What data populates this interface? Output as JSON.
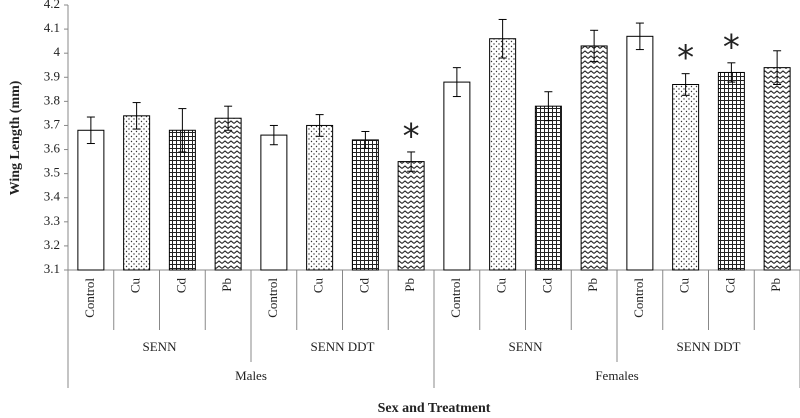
{
  "chart_data": {
    "type": "bar",
    "y_label": "Wing Length (mm)",
    "x_label": "Sex and Treatment",
    "categories": [
      "Control",
      "Cu",
      "Cd",
      "Pb",
      "Control",
      "Cu",
      "Cd",
      "Pb",
      "Control",
      "Cu",
      "Cd",
      "Pb",
      "Control",
      "Cu",
      "Cd",
      "Pb"
    ],
    "subgroups": [
      "SENN",
      "SENN DDT",
      "SENN",
      "SENN DDT"
    ],
    "groups": [
      "Males",
      "Females"
    ],
    "values": [
      3.68,
      3.74,
      3.68,
      3.73,
      3.66,
      3.7,
      3.64,
      3.55,
      3.88,
      4.06,
      3.78,
      4.03,
      4.07,
      3.87,
      3.92,
      3.94
    ],
    "errors": [
      0.055,
      0.055,
      0.09,
      0.05,
      0.04,
      0.045,
      0.035,
      0.04,
      0.06,
      0.08,
      0.06,
      0.065,
      0.055,
      0.045,
      0.04,
      0.07
    ],
    "significant": [
      false,
      false,
      false,
      false,
      false,
      false,
      false,
      true,
      false,
      false,
      false,
      false,
      false,
      true,
      true,
      false
    ],
    "significance_marker": "*",
    "color": "#000000",
    "ylim": [
      3.1,
      4.2
    ],
    "yticks": [
      3.1,
      3.2,
      3.3,
      3.4,
      3.5,
      3.6,
      3.7,
      3.8,
      3.9,
      {
        "value": 4,
        "label": "4"
      },
      4.1,
      4.2
    ]
  }
}
